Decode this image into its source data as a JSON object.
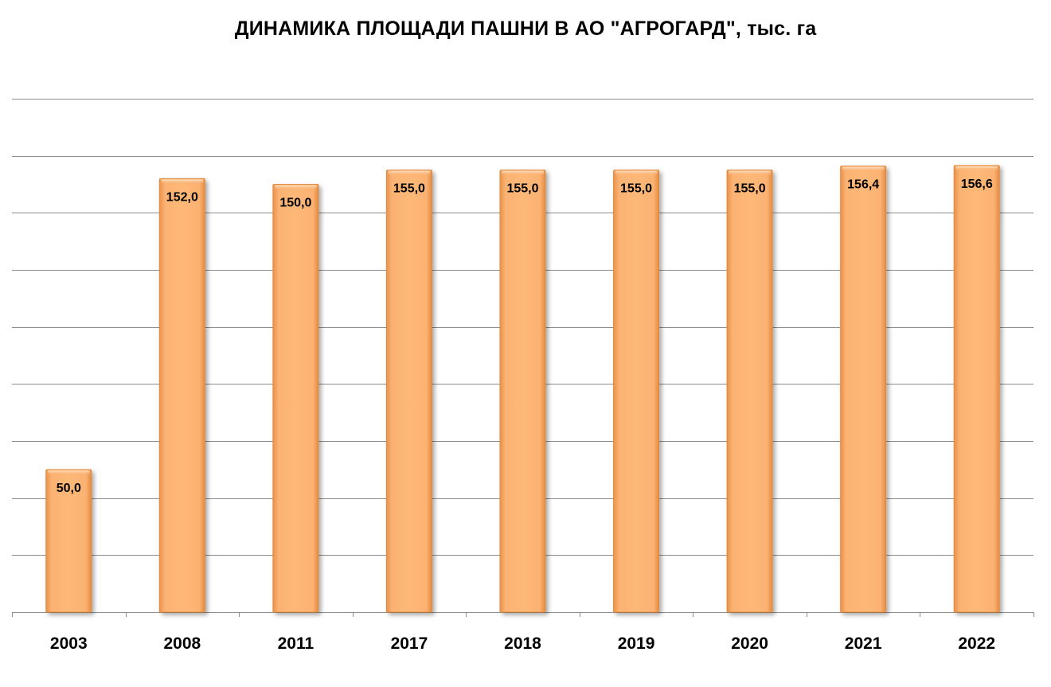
{
  "chart_data": {
    "type": "bar",
    "title": "ДИНАМИКА ПЛОЩАДИ ПАШНИ В АО \"АГРОГАРД\", тыс. га",
    "categories": [
      "2003",
      "2008",
      "2011",
      "2017",
      "2018",
      "2019",
      "2020",
      "2021",
      "2022"
    ],
    "values": [
      50.0,
      152.0,
      150.0,
      155.0,
      155.0,
      155.0,
      155.0,
      156.4,
      156.6
    ],
    "value_labels": [
      "50,0",
      "152,0",
      "150,0",
      "155,0",
      "155,0",
      "155,0",
      "155,0",
      "156,4",
      "156,6"
    ],
    "xlabel": "",
    "ylabel": "",
    "ylim": [
      0,
      180
    ],
    "grid": true,
    "legend": "none",
    "bar_color": "#FBB070",
    "bar_edge_color": "#E48A3C"
  }
}
